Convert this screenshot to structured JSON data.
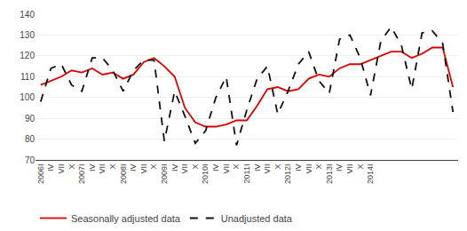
{
  "chart_data": {
    "type": "line",
    "categories": [
      "2006I",
      "IV",
      "VII",
      "X",
      "2007I",
      "IV",
      "VII",
      "X",
      "2008I",
      "IV",
      "VII",
      "X",
      "2009I",
      "IV",
      "VII",
      "X",
      "2010I",
      "IV",
      "VII",
      "X",
      "2011I",
      "IV",
      "VII",
      "X",
      "2012I",
      "IV",
      "VII",
      "X",
      "2013I",
      "IV",
      "VII",
      "X",
      "2014I",
      null,
      null,
      null,
      null,
      null,
      null,
      null,
      null
    ],
    "series": [
      {
        "name": "Seasonally adjusted data",
        "color": "#dd0000",
        "line_style": "solid",
        "values": [
          106,
          108,
          110,
          113,
          112,
          114,
          111,
          112,
          109,
          111,
          117,
          119,
          115,
          110,
          95,
          88,
          86,
          86,
          87,
          89,
          89,
          96,
          104,
          105,
          103,
          104,
          109,
          111,
          110,
          114,
          116,
          116,
          118,
          120,
          122,
          122,
          119,
          121,
          124,
          124,
          105
        ]
      },
      {
        "name": "Unadjusted data",
        "color": "#111111",
        "line_style": "dashed",
        "values": [
          98,
          114,
          116,
          106,
          103,
          119,
          119,
          113,
          103,
          113,
          118,
          118,
          79,
          103,
          91,
          78,
          84,
          100,
          110,
          77,
          94,
          109,
          115,
          92,
          103,
          116,
          122,
          108,
          102,
          128,
          130,
          119,
          101,
          127,
          134,
          125,
          104,
          131,
          132,
          126,
          93
        ]
      }
    ],
    "ylim": [
      70,
      140
    ],
    "yticks": [
      70,
      80,
      90,
      100,
      110,
      120,
      130,
      140
    ],
    "grid": true,
    "legend": "bottom"
  }
}
